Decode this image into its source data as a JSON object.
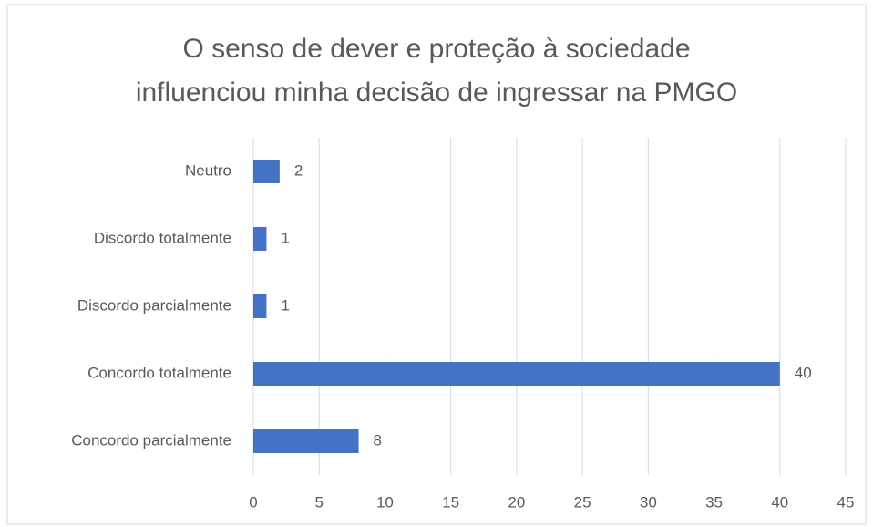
{
  "chart_data": {
    "type": "bar",
    "orientation": "horizontal",
    "title": "O senso de dever e proteção à sociedade\ninfluenciou minha decisão de ingressar na PMGO",
    "categories": [
      "Neutro",
      "Discordo totalmente",
      "Discordo parcialmente",
      "Concordo totalmente",
      "Concordo parcialmente"
    ],
    "values": [
      2,
      1,
      1,
      40,
      8
    ],
    "color": "#4472c4",
    "xlim": [
      0,
      45
    ],
    "xticks": [
      0,
      5,
      10,
      15,
      20,
      25,
      30,
      35,
      40,
      45
    ],
    "grid": true
  }
}
